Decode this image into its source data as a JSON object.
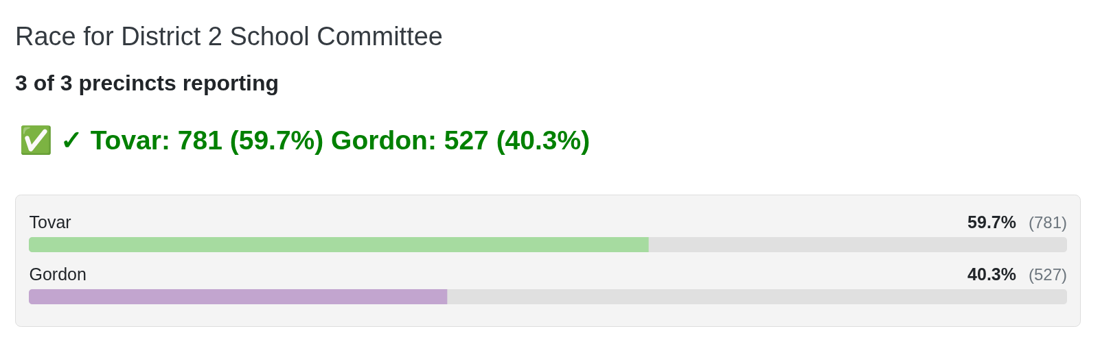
{
  "chart_data": {
    "type": "bar",
    "orientation": "horizontal",
    "title": "Race for District 2 School Committee",
    "subtitle": "3 of 3 precincts reporting",
    "categories": [
      "Tovar",
      "Gordon"
    ],
    "values": [
      59.7,
      40.3
    ],
    "colors": [
      "#a6dba0",
      "#c2a5cf"
    ],
    "value_labels": [
      "59.7%",
      "40.3%"
    ],
    "annotations": [
      "✅ ✓ Tovar: 781 (59.7%) Gordon: 527 (40.3%)",
      "(781)",
      "(527)"
    ],
    "xlim": [
      0,
      100
    ],
    "tick_labels": "y"
  }
}
